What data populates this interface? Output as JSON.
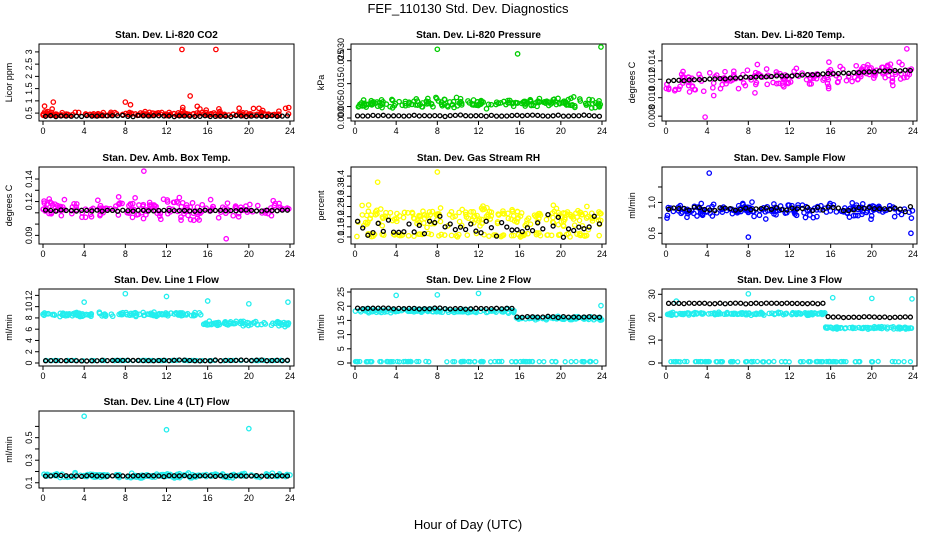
{
  "figure": {
    "title": "FEF_110130  Std. Dev. Diagnostics",
    "xlabel": "Hour of Day (UTC)"
  },
  "chart_data": [
    {
      "type": "scatter",
      "title": "Stan. Dev. Li-820 CO2",
      "ylabel": "Licor ppm",
      "x_ticks": [
        0,
        4,
        8,
        12,
        16,
        20,
        24
      ],
      "y_ticks": [
        0.5,
        1.0,
        1.5,
        2.0,
        2.5,
        3.0
      ],
      "xlim": [
        0,
        24
      ],
      "ylim": [
        0.3,
        3.2
      ],
      "color": "#ff0000",
      "series": [
        {
          "role": "scatter",
          "base": 0.45,
          "spread": 0.2,
          "outliers": [
            [
              13.5,
              3.1
            ],
            [
              14.3,
              1.2
            ],
            [
              16.8,
              3.1
            ],
            [
              1.0,
              0.95
            ],
            [
              8.0,
              0.95
            ]
          ]
        },
        {
          "role": "mean",
          "color": "#000000",
          "values": 0.38
        }
      ]
    },
    {
      "type": "scatter",
      "title": "Stan. Dev. Li-820 Pressure",
      "ylabel": "kPa",
      "x_ticks": [
        0,
        4,
        8,
        12,
        16,
        20,
        24
      ],
      "y_ticks": [
        0.0,
        0.005,
        0.015,
        0.025
      ],
      "y_tick_labels": [
        "0.000",
        "0.005",
        "0.015",
        "0.025"
      ],
      "extra_y_tick_label": "0.030",
      "xlim": [
        0,
        24
      ],
      "ylim": [
        0.0,
        0.031
      ],
      "color": "#00cc00",
      "series": [
        {
          "role": "scatter",
          "base": 0.0065,
          "spread": 0.004,
          "outliers": [
            [
              8.0,
              0.03
            ],
            [
              15.8,
              0.028
            ],
            [
              23.9,
              0.031
            ]
          ]
        },
        {
          "role": "mean",
          "color": "#000000",
          "values": 0.001
        }
      ]
    },
    {
      "type": "scatter",
      "title": "Stan. Dev. Li-820 Temp.",
      "ylabel": "degrees C",
      "x_ticks": [
        0,
        4,
        8,
        12,
        16,
        20,
        24
      ],
      "y_ticks": [
        0.008,
        0.01,
        0.012,
        0.014
      ],
      "y_tick_labels": [
        "0.008",
        "0.010",
        "0.012",
        "0.014"
      ],
      "xlim": [
        0,
        24
      ],
      "ylim": [
        0.0078,
        0.0155
      ],
      "color": "#ff00ff",
      "series": [
        {
          "role": "scatter",
          "base": 0.0115,
          "spread": 0.0018,
          "trend": 6e-05,
          "outliers": [
            [
              3.8,
              0.0079
            ],
            [
              23.4,
              0.0153
            ]
          ]
        },
        {
          "role": "mean",
          "color": "#000000",
          "values": 0.0118,
          "trend": 5e-05
        }
      ]
    },
    {
      "type": "scatter",
      "title": "Stan. Dev. Amb. Box Temp.",
      "ylabel": "degrees C",
      "x_ticks": [
        0,
        4,
        8,
        12,
        16,
        20,
        24
      ],
      "y_ticks": [
        0.09,
        0.1,
        0.11,
        0.12,
        0.13,
        0.14
      ],
      "y_tick_labels": [
        "0.09",
        "",
        "",
        "0.12",
        "",
        "0.14"
      ],
      "xlim": [
        0,
        24
      ],
      "ylim": [
        0.085,
        0.148
      ],
      "color": "#ff00ff",
      "series": [
        {
          "role": "scatter",
          "base": 0.113,
          "spread": 0.013,
          "outliers": [
            [
              17.8,
              0.087
            ],
            [
              9.8,
              0.147
            ]
          ]
        },
        {
          "role": "mean",
          "color": "#000000",
          "values": 0.112
        }
      ]
    },
    {
      "type": "scatter",
      "title": "Stan. Dev. Gas Stream RH",
      "ylabel": "percent",
      "x_ticks": [
        0,
        4,
        8,
        12,
        16,
        20,
        24
      ],
      "y_ticks": [
        0.1,
        0.15,
        0.2,
        0.25,
        0.3,
        0.35,
        0.4
      ],
      "xlim": [
        0,
        24
      ],
      "ylim": [
        0.08,
        0.43
      ],
      "color": "#ffff00",
      "series": [
        {
          "role": "scatter",
          "base": 0.2,
          "spread": 0.07,
          "outliers": [
            [
              8.0,
              0.42
            ],
            [
              2.2,
              0.37
            ]
          ]
        },
        {
          "role": "scatter-low",
          "base": 0.11,
          "spread": 0.015
        },
        {
          "role": "mean",
          "color": "#000000",
          "values": 0.15,
          "spread": 0.08
        }
      ]
    },
    {
      "type": "scatter",
      "title": "Stan. Dev. Sample Flow",
      "ylabel": "ml/min",
      "x_ticks": [
        0,
        4,
        8,
        12,
        16,
        20,
        24
      ],
      "y_ticks": [
        0.6,
        0.8,
        1.0,
        1.2
      ],
      "y_tick_labels": [
        "0.6",
        "",
        "1.0",
        ""
      ],
      "xlim": [
        0,
        24
      ],
      "ylim": [
        0.5,
        1.42
      ],
      "color": "#0000ff",
      "series": [
        {
          "role": "scatter",
          "base": 0.9,
          "spread": 0.14,
          "outliers": [
            [
              8.0,
              0.55
            ],
            [
              23.8,
              0.6
            ],
            [
              4.2,
              1.38
            ]
          ]
        },
        {
          "role": "mean",
          "color": "#000000",
          "values": 0.92,
          "spread": 0.05
        }
      ]
    },
    {
      "type": "scatter",
      "title": "Stan. Dev. Line 1 Flow",
      "ylabel": "ml/min",
      "x_ticks": [
        0,
        4,
        8,
        12,
        16,
        20,
        24
      ],
      "y_ticks": [
        0,
        2,
        4,
        6,
        8,
        10,
        12
      ],
      "xlim": [
        0,
        24
      ],
      "ylim": [
        0,
        12.6
      ],
      "color": "#22eeee",
      "series": [
        {
          "role": "band",
          "segments": [
            [
              0,
              15.5,
              8.6
            ],
            [
              15.5,
              24,
              7.0
            ]
          ],
          "spread": 0.6,
          "outliers": [
            [
              4.0,
              10.8
            ],
            [
              8.0,
              12.3
            ],
            [
              12.0,
              11.8
            ],
            [
              16.0,
              11.0
            ],
            [
              20.0,
              10.5
            ],
            [
              23.8,
              10.8
            ]
          ]
        },
        {
          "role": "flat",
          "values": 0.45
        },
        {
          "role": "mean",
          "color": "#000000",
          "values": 0.45
        }
      ]
    },
    {
      "type": "scatter",
      "title": "Stan. Dev. Line 2 Flow",
      "ylabel": "ml/min",
      "x_ticks": [
        0,
        4,
        8,
        12,
        16,
        20,
        24
      ],
      "y_ticks": [
        0,
        5,
        10,
        15,
        20,
        25
      ],
      "xlim": [
        0,
        24
      ],
      "ylim": [
        0,
        25
      ],
      "color": "#22eeee",
      "series": [
        {
          "role": "band",
          "segments": [
            [
              0,
              15.5,
              18.3
            ],
            [
              15.5,
              24,
              15.8
            ]
          ],
          "spread": 0.9,
          "outliers": [
            [
              8.0,
              24.0
            ],
            [
              12.0,
              24.5
            ],
            [
              23.9,
              20.2
            ],
            [
              4.0,
              23.8
            ]
          ]
        },
        {
          "role": "flat",
          "values": 0.5
        },
        {
          "role": "mean",
          "color": "#000000",
          "segments": [
            [
              0,
              15.5,
              19.2
            ],
            [
              15.5,
              24,
              16.2
            ]
          ]
        }
      ]
    },
    {
      "type": "scatter",
      "title": "Stan. Dev. Line 3 Flow",
      "ylabel": "ml/min",
      "x_ticks": [
        0,
        4,
        8,
        12,
        16,
        20,
        24
      ],
      "y_ticks": [
        0,
        10,
        20,
        30
      ],
      "xlim": [
        0,
        24
      ],
      "ylim": [
        0,
        31
      ],
      "color": "#22eeee",
      "series": [
        {
          "role": "band",
          "segments": [
            [
              0,
              15.5,
              21.5
            ],
            [
              15.5,
              24,
              15.3
            ]
          ],
          "spread": 0.8,
          "outliers": [
            [
              8.0,
              30.2
            ],
            [
              16.2,
              28.5
            ],
            [
              20.0,
              28.2
            ],
            [
              23.9,
              28.0
            ],
            [
              1.0,
              27.0
            ]
          ]
        },
        {
          "role": "flat",
          "values": 0.6
        },
        {
          "role": "mean",
          "color": "#000000",
          "segments": [
            [
              0,
              15.5,
              26.0
            ],
            [
              15.5,
              24,
              20.0
            ]
          ]
        }
      ]
    },
    {
      "type": "scatter",
      "title": "Stan. Dev. Line 4 (LT) Flow",
      "ylabel": "ml/min",
      "x_ticks": [
        0,
        4,
        8,
        12,
        16,
        20,
        24
      ],
      "y_ticks": [
        0.1,
        0.2,
        0.3,
        0.4,
        0.5,
        0.6
      ],
      "y_tick_labels": [
        "0.1",
        "",
        "0.3",
        "",
        "0.5",
        ""
      ],
      "xlim": [
        0,
        24
      ],
      "ylim": [
        0.08,
        0.71
      ],
      "color": "#22eeee",
      "series": [
        {
          "role": "band",
          "segments": [
            [
              0,
              24,
              0.165
            ]
          ],
          "spread": 0.03,
          "outliers": [
            [
              4.0,
              0.69
            ],
            [
              12.0,
              0.57
            ],
            [
              20.0,
              0.58
            ]
          ]
        },
        {
          "role": "mean",
          "color": "#000000",
          "segments": [
            [
              0,
              24,
              0.16
            ]
          ]
        }
      ]
    }
  ]
}
